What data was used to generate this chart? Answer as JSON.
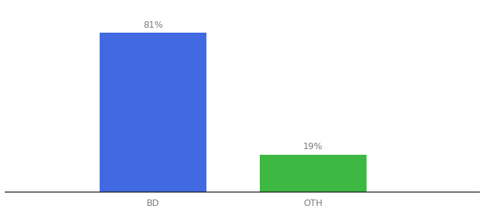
{
  "categories": [
    "BD",
    "OTH"
  ],
  "values": [
    81,
    19
  ],
  "bar_colors": [
    "#4169e1",
    "#3cb843"
  ],
  "value_labels": [
    "81%",
    "19%"
  ],
  "background_color": "#ffffff",
  "text_color": "#7a7a7a",
  "label_fontsize": 9,
  "tick_fontsize": 9,
  "ylim": [
    0,
    95
  ],
  "bar_width": 0.18,
  "x_positions": [
    0.35,
    0.62
  ],
  "xlim": [
    0.1,
    0.9
  ]
}
